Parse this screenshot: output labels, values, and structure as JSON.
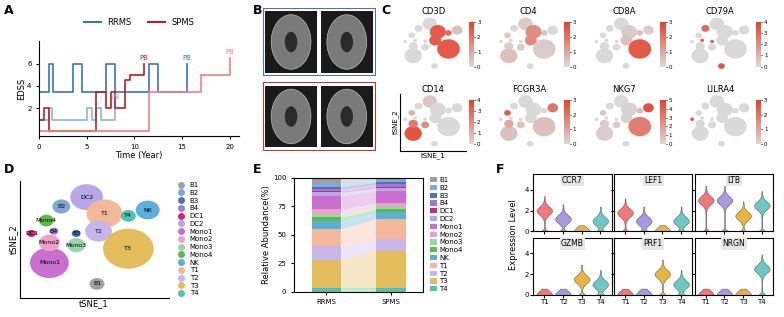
{
  "chart_data": [
    {
      "panel": "A",
      "type": "line",
      "xlabel": "Time (Year)",
      "ylabel": "EDSS",
      "xlim": [
        0,
        21
      ],
      "xticks": [
        0,
        5,
        10,
        15,
        20
      ],
      "ylim": [
        -0.5,
        8
      ],
      "yticks": [
        2,
        4,
        6
      ],
      "legend": "upper center",
      "line_style": "steps",
      "series": [
        {
          "name": "RRMS",
          "color": "#3a6fc4",
          "annotation": "PB",
          "x": [
            0,
            1,
            1.5,
            3.5,
            4.5,
            7,
            8,
            11.5,
            12.5,
            15.5
          ],
          "values": [
            3.5,
            6,
            3.5,
            6,
            3.5,
            6,
            3.5,
            6,
            3.5,
            6
          ]
        },
        {
          "name": "RRMS",
          "color": "#8ab4e8",
          "annotation": "PB",
          "x": [
            0,
            1,
            1.3,
            5,
            5.5,
            6,
            6.5,
            8
          ],
          "values": [
            1,
            2,
            1,
            2,
            1,
            2,
            1,
            2.5
          ]
        },
        {
          "name": "SPMS",
          "color": "#b22222",
          "annotation": "PB",
          "x": [
            0,
            0.5,
            1,
            5.5,
            6,
            7,
            7.5,
            8,
            9,
            9.5,
            11
          ],
          "values": [
            1,
            2,
            0,
            0,
            3.5,
            2,
            3.5,
            2,
            4.5,
            5,
            6
          ]
        },
        {
          "name": "SPMS",
          "color": "#f08080",
          "annotation": "PB",
          "x": [
            0,
            11.5,
            12,
            17,
            20
          ],
          "values": [
            0,
            3.5,
            3.5,
            5,
            6.5
          ]
        }
      ]
    },
    {
      "panel": "B",
      "type": "image",
      "colors": [
        "#4a6fc4",
        "#c0392b"
      ]
    },
    {
      "panel": "C",
      "type": "feature_plot",
      "xlabel": "tSNE_1",
      "ylabel": "tSNE_2",
      "colors": [
        "#d9d9d9",
        "#e8402c"
      ],
      "genes": [
        {
          "name": "CD3D",
          "values": [
            0,
            0,
            0,
            0,
            0,
            0,
            0,
            0,
            0,
            0,
            0.5,
            2.5,
            2.5,
            2.5,
            2.2
          ],
          "colorbar": {
            "lim": [
              0,
              3
            ],
            "ticks": [
              0,
              1,
              2,
              3
            ]
          }
        },
        {
          "name": "CD4",
          "values": [
            0,
            0,
            0,
            0,
            0,
            0.3,
            0.5,
            0.3,
            0.3,
            0.3,
            0,
            1.5,
            1.5,
            0.3,
            0.5
          ],
          "colorbar": {
            "lim": [
              0,
              3
            ],
            "ticks": [
              0,
              1,
              2,
              3
            ]
          }
        },
        {
          "name": "CD8A",
          "values": [
            0,
            0,
            0,
            0,
            0,
            0,
            0,
            0,
            0,
            0,
            0.3,
            0.3,
            0.5,
            2.5,
            0.5
          ],
          "colorbar": {
            "lim": [
              0,
              3
            ],
            "ticks": [
              0,
              1,
              2,
              3
            ]
          }
        },
        {
          "name": "CD79A",
          "values": [
            3.5,
            3,
            3,
            3,
            0,
            0,
            0,
            0,
            0,
            0,
            0,
            0,
            0,
            0,
            0
          ],
          "colorbar": {
            "lim": [
              0,
              4
            ],
            "ticks": [
              0,
              1,
              2,
              3,
              4
            ]
          }
        },
        {
          "name": "CD14",
          "values": [
            0,
            0,
            0,
            0,
            0,
            0.5,
            3.5,
            2.5,
            2,
            1,
            0,
            0,
            0,
            0,
            0
          ],
          "colorbar": {
            "lim": [
              0,
              4
            ],
            "ticks": [
              0,
              1,
              2,
              3,
              4
            ]
          }
        },
        {
          "name": "FCGR3A",
          "values": [
            0,
            0,
            0,
            0,
            0,
            0,
            0.5,
            1,
            0.5,
            2.5,
            2,
            0,
            0,
            0.5,
            0
          ],
          "colorbar": {
            "lim": [
              0,
              3
            ],
            "ticks": [
              0,
              1,
              2,
              3
            ]
          }
        },
        {
          "name": "NKG7",
          "values": [
            0,
            0,
            0,
            0,
            0,
            0,
            0.5,
            0.5,
            0.5,
            0.5,
            4.5,
            0.3,
            0.3,
            3,
            1
          ],
          "colorbar": {
            "lim": [
              0,
              5
            ],
            "ticks": [
              0,
              1,
              2,
              3,
              4,
              5
            ]
          }
        },
        {
          "name": "LILRA4",
          "values": [
            0,
            0,
            0,
            0,
            2.5,
            0,
            0,
            0,
            0,
            0,
            0,
            0,
            0,
            0,
            0
          ],
          "colorbar": {
            "lim": [
              0,
              3
            ],
            "ticks": [
              0,
              1,
              2,
              3
            ]
          }
        }
      ]
    },
    {
      "panel": "D",
      "type": "scatter",
      "xlabel": "tSNE_1",
      "ylabel": "tSNE_2",
      "tick_labels": false,
      "xlim": [
        0,
        100
      ],
      "ylim": [
        0,
        100
      ],
      "xticks": [],
      "yticks": [],
      "legend": "right",
      "clusters": [
        {
          "name": "B1",
          "color": "#a0a0a0",
          "x": 52,
          "y": 12,
          "size": 5
        },
        {
          "name": "B2",
          "color": "#7fa7d9",
          "x": 28,
          "y": 78,
          "size": 6
        },
        {
          "name": "B3",
          "color": "#4f6fb8",
          "x": 38,
          "y": 55,
          "size": 3
        },
        {
          "name": "B4",
          "color": "#9a7bd0",
          "x": 23,
          "y": 57,
          "size": 3
        },
        {
          "name": "DC1",
          "color": "#d6247a",
          "x": 8,
          "y": 55,
          "size": 3
        },
        {
          "name": "DC2",
          "color": "#b8a6e6",
          "x": 45,
          "y": 86,
          "size": 11
        },
        {
          "name": "Mono1",
          "color": "#c96fd0",
          "x": 20,
          "y": 30,
          "size": 13
        },
        {
          "name": "Mono2",
          "color": "#f0a0c8",
          "x": 20,
          "y": 47,
          "size": 7
        },
        {
          "name": "Mono3",
          "color": "#9bd4a8",
          "x": 38,
          "y": 45,
          "size": 6
        },
        {
          "name": "Mono4",
          "color": "#5fb84a",
          "x": 18,
          "y": 66,
          "size": 5
        },
        {
          "name": "NK",
          "color": "#5bb0d8",
          "x": 86,
          "y": 75,
          "size": 8
        },
        {
          "name": "T1",
          "color": "#f3b89a",
          "x": 57,
          "y": 72,
          "size": 12
        },
        {
          "name": "T2",
          "color": "#c7b6ea",
          "x": 53,
          "y": 57,
          "size": 9
        },
        {
          "name": "T3",
          "color": "#e3bd5c",
          "x": 73,
          "y": 42,
          "size": 17
        },
        {
          "name": "T4",
          "color": "#4cc3b5",
          "x": 73,
          "y": 70,
          "size": 5
        }
      ]
    },
    {
      "panel": "E",
      "type": "bar",
      "stacked": true,
      "ylabel": "Relative Abundance(%)",
      "legend": "right",
      "categories": [
        "RRMS",
        "SPMS"
      ],
      "ylim": [
        0,
        100
      ],
      "yticks": [
        0,
        25,
        50,
        75,
        100
      ],
      "series": [
        {
          "name": "B1",
          "color": "#a0a0a0",
          "values": [
            5,
            2
          ]
        },
        {
          "name": "B2",
          "color": "#7fa7d9",
          "values": [
            3,
            2
          ]
        },
        {
          "name": "B3",
          "color": "#4f6fb8",
          "values": [
            2,
            2
          ]
        },
        {
          "name": "B4",
          "color": "#9a7bd0",
          "values": [
            2,
            2
          ]
        },
        {
          "name": "DC1",
          "color": "#d6247a",
          "values": [
            1,
            1
          ]
        },
        {
          "name": "DC2",
          "color": "#b8a6e6",
          "values": [
            3,
            3
          ]
        },
        {
          "name": "Mono1",
          "color": "#c96fd0",
          "values": [
            12,
            10
          ]
        },
        {
          "name": "Mono2",
          "color": "#f0a0c8",
          "values": [
            4,
            3
          ]
        },
        {
          "name": "Mono3",
          "color": "#9bd4a8",
          "values": [
            3,
            3
          ]
        },
        {
          "name": "Mono4",
          "color": "#5fb84a",
          "values": [
            3,
            2
          ]
        },
        {
          "name": "NK",
          "color": "#5bb0d8",
          "values": [
            7,
            6
          ]
        },
        {
          "name": "T1",
          "color": "#f3b89a",
          "values": [
            15,
            18
          ]
        },
        {
          "name": "T2",
          "color": "#c7b6ea",
          "values": [
            12,
            10
          ]
        },
        {
          "name": "T3",
          "color": "#e3bd5c",
          "values": [
            25,
            33
          ]
        },
        {
          "name": "T4",
          "color": "#4cc3b5",
          "values": [
            3,
            3
          ]
        }
      ]
    },
    {
      "panel": "F",
      "type": "violin",
      "ylabel": "Expression Level",
      "categories": [
        "T1",
        "T2",
        "T3",
        "T4"
      ],
      "colors": [
        "#f07878",
        "#a898e0",
        "#e8b440",
        "#6cc8c0"
      ],
      "ylim": [
        0,
        5.5
      ],
      "yticks": [
        0,
        2,
        4
      ],
      "genes": [
        {
          "name": "CCR7",
          "values": [
            2.0,
            1.2,
            0,
            1.0
          ]
        },
        {
          "name": "LEF1",
          "values": [
            1.8,
            1.0,
            0,
            1.0
          ]
        },
        {
          "name": "LTB",
          "values": [
            3.0,
            3.0,
            1.5,
            2.5
          ]
        },
        {
          "name": "GZMB",
          "values": [
            0,
            0,
            1.5,
            1.0
          ]
        },
        {
          "name": "PRF1",
          "values": [
            0,
            0,
            2.0,
            1.0
          ]
        },
        {
          "name": "NRGN",
          "values": [
            0,
            0,
            0,
            2.5
          ]
        }
      ]
    }
  ]
}
